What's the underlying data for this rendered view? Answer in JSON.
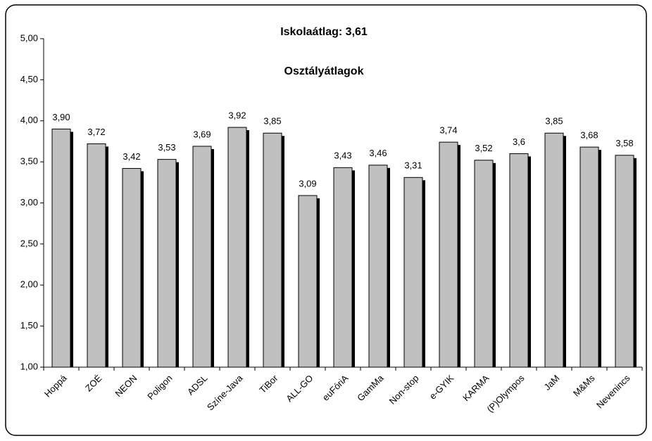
{
  "chart_data": {
    "type": "bar",
    "title": "Iskolaátlag: 3,61",
    "subtitle": "Osztályátlagok",
    "categories": [
      "Hoppá",
      "ZOÉ",
      "NEON",
      "Poligon",
      "ADSL",
      "Színe-Java",
      "TiBor",
      "ALL-GO",
      "euFóriA",
      "GamMa",
      "Non-stop",
      "e-GYIK",
      "KARMA",
      "(P)Olympos",
      "JaM",
      "M&Ms",
      "Nevenincs"
    ],
    "values": [
      3.9,
      3.72,
      3.42,
      3.53,
      3.69,
      3.92,
      3.85,
      3.09,
      3.43,
      3.46,
      3.31,
      3.74,
      3.52,
      3.6,
      3.85,
      3.68,
      3.58
    ],
    "value_labels": [
      "3,90",
      "3,72",
      "3,42",
      "3,53",
      "3,69",
      "3,92",
      "3,85",
      "3,09",
      "3,43",
      "3,46",
      "3,31",
      "3,74",
      "3,52",
      "3,6",
      "3,85",
      "3,68",
      "3,58"
    ],
    "color": "#c0c0c0",
    "ylim": [
      1,
      5
    ],
    "yticks": [
      {
        "value": 1,
        "label": "1,00"
      },
      {
        "value": 1.5,
        "label": "1,50"
      },
      {
        "value": 2,
        "label": "2,00"
      },
      {
        "value": 2.5,
        "label": "2,50"
      },
      {
        "value": 3,
        "label": "3,00"
      },
      {
        "value": 3.5,
        "label": "3,50"
      },
      {
        "value": 4,
        "label": "4,00"
      },
      {
        "value": 4.5,
        "label": "4,50"
      },
      {
        "value": 5,
        "label": "5,00"
      }
    ],
    "grid": false
  }
}
